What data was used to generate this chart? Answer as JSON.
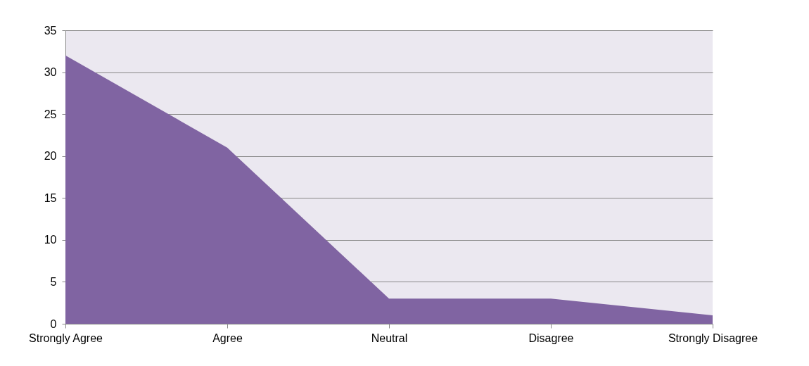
{
  "chart_data": {
    "type": "area",
    "categories": [
      "Strongly Agree",
      "Agree",
      "Neutral",
      "Disagree",
      "Strongly Disagree"
    ],
    "series": [
      {
        "color": "#8064a2",
        "values": [
          32,
          21,
          3,
          3,
          1
        ]
      }
    ],
    "ylim": [
      0,
      35
    ],
    "yticks": [
      0,
      5,
      10,
      15,
      20,
      25,
      30,
      35
    ],
    "grid": "y"
  }
}
